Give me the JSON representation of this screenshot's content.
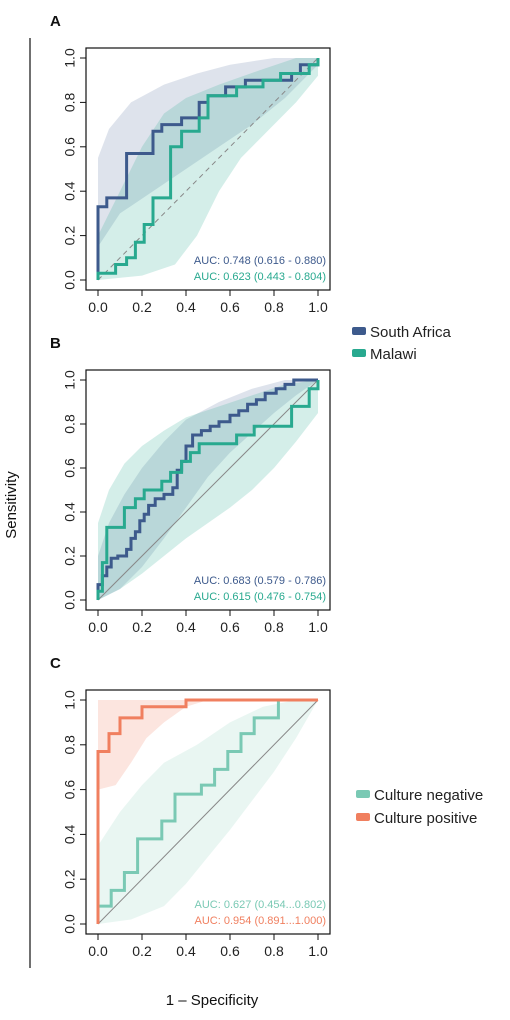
{
  "figure": {
    "ylabel": "Sensitivity",
    "xlabel": "1 – Specificity"
  },
  "colors": {
    "south_africa": "#3d5a8c",
    "malawi": "#28a98f",
    "culture_negative": "#7ac9b4",
    "culture_positive": "#f07f5f"
  },
  "legends": [
    {
      "entries": [
        {
          "label": "South Africa",
          "color": "#3d5a8c"
        },
        {
          "label": "Malawi",
          "color": "#28a98f"
        }
      ]
    },
    {
      "entries": [
        {
          "label": "Culture negative",
          "color": "#7ac9b4"
        },
        {
          "label": "Culture positive",
          "color": "#f07f5f"
        }
      ]
    }
  ],
  "chart_data": [
    {
      "type": "line",
      "panel_label": "A",
      "xlim": [
        0,
        1
      ],
      "ylim": [
        0,
        1
      ],
      "x_ticks": [
        "0.0",
        "0.2",
        "0.4",
        "0.6",
        "0.8",
        "1.0"
      ],
      "y_ticks": [
        "0.0",
        "0.2",
        "0.4",
        "0.6",
        "0.8",
        "1.0"
      ],
      "reference_line": "dashed",
      "series": [
        {
          "name": "South Africa",
          "color": "#3d5a8c",
          "auc": "AUC: 0.748 (0.616 - 0.880)",
          "x": [
            0,
            0,
            0.04,
            0.04,
            0.13,
            0.13,
            0.25,
            0.25,
            0.29,
            0.29,
            0.38,
            0.38,
            0.46,
            0.46,
            0.5,
            0.5,
            0.58,
            0.58,
            0.67,
            0.67,
            0.88,
            0.88,
            0.92,
            0.92,
            1.0,
            1.0
          ],
          "y": [
            0,
            0.33,
            0.33,
            0.37,
            0.37,
            0.57,
            0.57,
            0.67,
            0.67,
            0.7,
            0.7,
            0.73,
            0.73,
            0.8,
            0.8,
            0.83,
            0.83,
            0.87,
            0.87,
            0.9,
            0.9,
            0.93,
            0.93,
            0.97,
            0.97,
            1.0
          ],
          "band_upper": [
            [
              0,
              0.55
            ],
            [
              0.05,
              0.68
            ],
            [
              0.15,
              0.8
            ],
            [
              0.3,
              0.88
            ],
            [
              0.45,
              0.93
            ],
            [
              0.6,
              0.97
            ],
            [
              0.8,
              1.0
            ],
            [
              1.0,
              1.0
            ]
          ],
          "band_lower": [
            [
              0,
              0.15
            ],
            [
              0.1,
              0.3
            ],
            [
              0.25,
              0.4
            ],
            [
              0.4,
              0.5
            ],
            [
              0.55,
              0.6
            ],
            [
              0.7,
              0.7
            ],
            [
              0.85,
              0.82
            ],
            [
              1.0,
              0.97
            ]
          ]
        },
        {
          "name": "Malawi",
          "color": "#28a98f",
          "auc": "AUC: 0.623 (0.443 - 0.804)",
          "x": [
            0,
            0,
            0.08,
            0.08,
            0.13,
            0.13,
            0.17,
            0.17,
            0.21,
            0.21,
            0.25,
            0.25,
            0.33,
            0.33,
            0.38,
            0.38,
            0.46,
            0.46,
            0.5,
            0.5,
            0.63,
            0.63,
            0.75,
            0.75,
            0.83,
            0.83,
            0.96,
            0.96,
            1.0,
            1.0
          ],
          "y": [
            0,
            0.03,
            0.03,
            0.07,
            0.07,
            0.1,
            0.1,
            0.17,
            0.17,
            0.25,
            0.25,
            0.37,
            0.37,
            0.6,
            0.6,
            0.67,
            0.67,
            0.73,
            0.73,
            0.83,
            0.83,
            0.87,
            0.87,
            0.9,
            0.9,
            0.93,
            0.93,
            0.97,
            0.97,
            1.0
          ],
          "band_upper": [
            [
              0,
              0.2
            ],
            [
              0.1,
              0.4
            ],
            [
              0.2,
              0.6
            ],
            [
              0.3,
              0.75
            ],
            [
              0.4,
              0.82
            ],
            [
              0.55,
              0.88
            ],
            [
              0.75,
              0.95
            ],
            [
              0.9,
              1.0
            ],
            [
              1.0,
              1.0
            ]
          ],
          "band_lower": [
            [
              0,
              0.0
            ],
            [
              0.2,
              0.02
            ],
            [
              0.35,
              0.07
            ],
            [
              0.45,
              0.2
            ],
            [
              0.55,
              0.4
            ],
            [
              0.65,
              0.55
            ],
            [
              0.78,
              0.68
            ],
            [
              0.9,
              0.8
            ],
            [
              1.0,
              0.92
            ]
          ]
        }
      ]
    },
    {
      "type": "line",
      "panel_label": "B",
      "xlim": [
        0,
        1
      ],
      "ylim": [
        0,
        1
      ],
      "x_ticks": [
        "0.0",
        "0.2",
        "0.4",
        "0.6",
        "0.8",
        "1.0"
      ],
      "y_ticks": [
        "0.0",
        "0.2",
        "0.4",
        "0.6",
        "0.8",
        "1.0"
      ],
      "reference_line": "solid",
      "series": [
        {
          "name": "South Africa",
          "color": "#3d5a8c",
          "auc": "AUC: 0.683 (0.579 - 0.786)",
          "x": [
            0,
            0,
            0.02,
            0.02,
            0.04,
            0.04,
            0.06,
            0.06,
            0.09,
            0.09,
            0.13,
            0.13,
            0.15,
            0.15,
            0.17,
            0.17,
            0.19,
            0.19,
            0.21,
            0.21,
            0.23,
            0.23,
            0.26,
            0.26,
            0.3,
            0.3,
            0.34,
            0.34,
            0.36,
            0.36,
            0.38,
            0.38,
            0.4,
            0.4,
            0.43,
            0.43,
            0.47,
            0.47,
            0.51,
            0.51,
            0.55,
            0.55,
            0.6,
            0.6,
            0.64,
            0.64,
            0.68,
            0.68,
            0.72,
            0.72,
            0.76,
            0.76,
            0.81,
            0.81,
            0.85,
            0.85,
            0.89,
            0.89,
            1.0,
            1.0
          ],
          "y": [
            0,
            0.07,
            0.07,
            0.11,
            0.11,
            0.15,
            0.15,
            0.19,
            0.19,
            0.2,
            0.2,
            0.23,
            0.23,
            0.28,
            0.28,
            0.31,
            0.31,
            0.36,
            0.36,
            0.39,
            0.39,
            0.43,
            0.43,
            0.46,
            0.46,
            0.48,
            0.48,
            0.51,
            0.51,
            0.59,
            0.59,
            0.63,
            0.63,
            0.7,
            0.7,
            0.75,
            0.75,
            0.77,
            0.77,
            0.79,
            0.79,
            0.81,
            0.81,
            0.84,
            0.84,
            0.86,
            0.86,
            0.89,
            0.89,
            0.91,
            0.91,
            0.94,
            0.94,
            0.96,
            0.96,
            0.98,
            0.98,
            1.0,
            1.0,
            1.0
          ],
          "band_upper": [
            [
              0,
              0.2
            ],
            [
              0.05,
              0.35
            ],
            [
              0.12,
              0.48
            ],
            [
              0.2,
              0.6
            ],
            [
              0.3,
              0.72
            ],
            [
              0.4,
              0.82
            ],
            [
              0.55,
              0.9
            ],
            [
              0.7,
              0.96
            ],
            [
              0.85,
              1.0
            ],
            [
              1.0,
              1.0
            ]
          ],
          "band_lower": [
            [
              0,
              0.0
            ],
            [
              0.1,
              0.05
            ],
            [
              0.2,
              0.15
            ],
            [
              0.3,
              0.28
            ],
            [
              0.4,
              0.42
            ],
            [
              0.5,
              0.56
            ],
            [
              0.6,
              0.67
            ],
            [
              0.7,
              0.76
            ],
            [
              0.8,
              0.85
            ],
            [
              0.9,
              0.93
            ],
            [
              1.0,
              1.0
            ]
          ]
        },
        {
          "name": "Malawi",
          "color": "#28a98f",
          "auc": "AUC: 0.615 (0.476 - 0.754)",
          "x": [
            0,
            0,
            0.02,
            0.02,
            0.04,
            0.04,
            0.12,
            0.12,
            0.17,
            0.17,
            0.21,
            0.21,
            0.29,
            0.29,
            0.33,
            0.33,
            0.38,
            0.38,
            0.42,
            0.42,
            0.46,
            0.46,
            0.63,
            0.63,
            0.71,
            0.71,
            0.88,
            0.88,
            0.96,
            0.96,
            1.0,
            1.0
          ],
          "y": [
            0,
            0.04,
            0.04,
            0.17,
            0.17,
            0.33,
            0.33,
            0.42,
            0.42,
            0.46,
            0.46,
            0.5,
            0.5,
            0.54,
            0.54,
            0.58,
            0.58,
            0.63,
            0.63,
            0.67,
            0.67,
            0.71,
            0.71,
            0.75,
            0.75,
            0.79,
            0.79,
            0.88,
            0.88,
            0.96,
            0.96,
            1.0
          ],
          "band_upper": [
            [
              0,
              0.35
            ],
            [
              0.05,
              0.5
            ],
            [
              0.12,
              0.62
            ],
            [
              0.2,
              0.7
            ],
            [
              0.3,
              0.77
            ],
            [
              0.4,
              0.83
            ],
            [
              0.55,
              0.88
            ],
            [
              0.7,
              0.93
            ],
            [
              0.85,
              0.98
            ],
            [
              1.0,
              1.0
            ]
          ],
          "band_lower": [
            [
              0,
              0.0
            ],
            [
              0.1,
              0.05
            ],
            [
              0.2,
              0.12
            ],
            [
              0.3,
              0.2
            ],
            [
              0.4,
              0.28
            ],
            [
              0.5,
              0.35
            ],
            [
              0.6,
              0.42
            ],
            [
              0.7,
              0.5
            ],
            [
              0.8,
              0.6
            ],
            [
              0.9,
              0.72
            ],
            [
              1.0,
              0.85
            ]
          ]
        }
      ]
    },
    {
      "type": "line",
      "panel_label": "C",
      "xlim": [
        0,
        1
      ],
      "ylim": [
        0,
        1
      ],
      "x_ticks": [
        "0.0",
        "0.2",
        "0.4",
        "0.6",
        "0.8",
        "1.0"
      ],
      "y_ticks": [
        "0.0",
        "0.2",
        "0.4",
        "0.6",
        "0.8",
        "1.0"
      ],
      "reference_line": "solid",
      "series": [
        {
          "name": "Culture negative",
          "color": "#7ac9b4",
          "auc": "AUC: 0.627 (0.454...0.802)",
          "x": [
            0,
            0,
            0.06,
            0.06,
            0.12,
            0.12,
            0.18,
            0.18,
            0.29,
            0.29,
            0.35,
            0.35,
            0.47,
            0.47,
            0.53,
            0.53,
            0.59,
            0.59,
            0.65,
            0.65,
            0.71,
            0.71,
            0.82,
            0.82,
            1.0,
            1.0
          ],
          "y": [
            0,
            0.08,
            0.08,
            0.15,
            0.15,
            0.23,
            0.23,
            0.38,
            0.38,
            0.46,
            0.46,
            0.58,
            0.58,
            0.62,
            0.62,
            0.69,
            0.69,
            0.77,
            0.77,
            0.85,
            0.85,
            0.92,
            0.92,
            1.0,
            1.0,
            1.0
          ],
          "band_upper": [
            [
              0,
              0.35
            ],
            [
              0.1,
              0.5
            ],
            [
              0.2,
              0.62
            ],
            [
              0.3,
              0.72
            ],
            [
              0.45,
              0.8
            ],
            [
              0.6,
              0.9
            ],
            [
              0.75,
              0.97
            ],
            [
              0.9,
              1.0
            ],
            [
              1.0,
              1.0
            ]
          ],
          "band_lower": [
            [
              0,
              0.0
            ],
            [
              0.15,
              0.02
            ],
            [
              0.3,
              0.08
            ],
            [
              0.4,
              0.18
            ],
            [
              0.5,
              0.3
            ],
            [
              0.6,
              0.42
            ],
            [
              0.7,
              0.55
            ],
            [
              0.8,
              0.68
            ],
            [
              0.9,
              0.83
            ],
            [
              1.0,
              1.0
            ]
          ]
        },
        {
          "name": "Culture positive",
          "color": "#f07f5f",
          "auc": "AUC: 0.954 (0.891...1.000)",
          "x": [
            0,
            0,
            0.05,
            0.05,
            0.1,
            0.1,
            0.2,
            0.2,
            0.4,
            0.4,
            1.0
          ],
          "y": [
            0,
            0.77,
            0.77,
            0.85,
            0.85,
            0.92,
            0.92,
            0.97,
            0.97,
            1.0,
            1.0
          ],
          "band_upper": [
            [
              0,
              1.0
            ],
            [
              1.0,
              1.0
            ]
          ],
          "band_lower": [
            [
              0,
              0.6
            ],
            [
              0.08,
              0.62
            ],
            [
              0.15,
              0.72
            ],
            [
              0.22,
              0.83
            ],
            [
              0.3,
              0.9
            ],
            [
              0.4,
              0.97
            ],
            [
              0.5,
              1.0
            ],
            [
              1.0,
              1.0
            ]
          ]
        }
      ]
    }
  ]
}
